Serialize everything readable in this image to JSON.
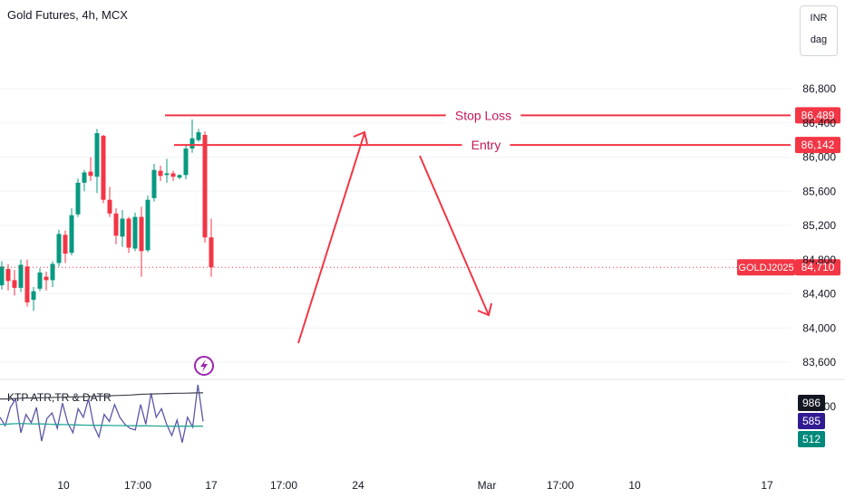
{
  "header": {
    "title": "Gold Futures, 4h, MCX",
    "currency": "INR",
    "unit": "dag"
  },
  "colors": {
    "up": "#089981",
    "down": "#f23645",
    "drawing": "#f23645",
    "drawing_text": "#c2185b",
    "atr_line": "#5b57a6",
    "tr_line": "#434651",
    "datr_line": "#26a69a",
    "label_price": "#f23645",
    "label_atr": "#131722",
    "label_tr": "#311b92",
    "label_datr": "#00897b"
  },
  "chart_data": {
    "type": "candlestick",
    "symbol_label": "GOLDJ2025",
    "last_price": "84,710",
    "price_axis": {
      "range": [
        83400,
        87000
      ],
      "ticks": [
        {
          "value": 86800,
          "label": "86,800"
        },
        {
          "value": 86400,
          "label": "86,400"
        },
        {
          "value": 86000,
          "label": "86,000"
        },
        {
          "value": 85600,
          "label": "85,600"
        },
        {
          "value": 85200,
          "label": "85,200"
        },
        {
          "value": 84800,
          "label": "84,800"
        },
        {
          "value": 84400,
          "label": "84,400"
        },
        {
          "value": 84000,
          "label": "84,000"
        },
        {
          "value": 83600,
          "label": "83,600"
        }
      ]
    },
    "time_axis": [
      "10",
      "17:00",
      "17",
      "17:00",
      "24",
      "Mar",
      "17:00",
      "10",
      "17"
    ],
    "candles": [
      {
        "o": 84500,
        "h": 84780,
        "l": 84450,
        "c": 84720
      },
      {
        "o": 84690,
        "h": 84750,
        "l": 84440,
        "c": 84550
      },
      {
        "o": 84560,
        "h": 84680,
        "l": 84380,
        "c": 84470
      },
      {
        "o": 84470,
        "h": 84800,
        "l": 84420,
        "c": 84740
      },
      {
        "o": 84720,
        "h": 84800,
        "l": 84250,
        "c": 84300
      },
      {
        "o": 84330,
        "h": 84480,
        "l": 84200,
        "c": 84430
      },
      {
        "o": 84460,
        "h": 84700,
        "l": 84430,
        "c": 84650
      },
      {
        "o": 84600,
        "h": 84660,
        "l": 84440,
        "c": 84560
      },
      {
        "o": 84560,
        "h": 84780,
        "l": 84480,
        "c": 84750
      },
      {
        "o": 84760,
        "h": 85150,
        "l": 84720,
        "c": 85100
      },
      {
        "o": 85090,
        "h": 85140,
        "l": 84760,
        "c": 84870
      },
      {
        "o": 84880,
        "h": 85400,
        "l": 84850,
        "c": 85320
      },
      {
        "o": 85330,
        "h": 85750,
        "l": 85300,
        "c": 85700
      },
      {
        "o": 85700,
        "h": 85850,
        "l": 85600,
        "c": 85820
      },
      {
        "o": 85830,
        "h": 86000,
        "l": 85720,
        "c": 85780
      },
      {
        "o": 85770,
        "h": 86330,
        "l": 85580,
        "c": 86280
      },
      {
        "o": 86250,
        "h": 86260,
        "l": 85460,
        "c": 85500
      },
      {
        "o": 85500,
        "h": 85650,
        "l": 85300,
        "c": 85340
      },
      {
        "o": 85340,
        "h": 85400,
        "l": 84980,
        "c": 85080
      },
      {
        "o": 85070,
        "h": 85380,
        "l": 84950,
        "c": 85280
      },
      {
        "o": 85280,
        "h": 85300,
        "l": 84880,
        "c": 84940
      },
      {
        "o": 84930,
        "h": 85350,
        "l": 84900,
        "c": 85300
      },
      {
        "o": 85300,
        "h": 85420,
        "l": 84600,
        "c": 84900
      },
      {
        "o": 84910,
        "h": 85550,
        "l": 84890,
        "c": 85500
      },
      {
        "o": 85520,
        "h": 85920,
        "l": 85480,
        "c": 85850
      },
      {
        "o": 85840,
        "h": 85900,
        "l": 85720,
        "c": 85780
      },
      {
        "o": 85790,
        "h": 85980,
        "l": 85700,
        "c": 85810
      },
      {
        "o": 85810,
        "h": 85840,
        "l": 85720,
        "c": 85770
      },
      {
        "o": 85760,
        "h": 85800,
        "l": 85740,
        "c": 85790
      },
      {
        "o": 85790,
        "h": 86150,
        "l": 85740,
        "c": 86100
      },
      {
        "o": 86100,
        "h": 86440,
        "l": 86050,
        "c": 86220
      },
      {
        "o": 86200,
        "h": 86330,
        "l": 86180,
        "c": 86290
      },
      {
        "o": 86260,
        "h": 86300,
        "l": 85000,
        "c": 85060
      },
      {
        "o": 85060,
        "h": 85280,
        "l": 84600,
        "c": 84710
      }
    ],
    "drawings": [
      {
        "kind": "hline",
        "label": "Stop Loss",
        "price": 86489,
        "price_label": "86,489"
      },
      {
        "kind": "hline",
        "label": "Entry",
        "price": 86142,
        "price_label": "86,142"
      }
    ],
    "indicator": {
      "name": "KTP ATR,TR & DATR",
      "axis_tick": "1,000",
      "atr_value": "986",
      "tr_value": "585",
      "datr_value": "512",
      "tr": [
        640,
        520,
        780,
        900,
        420,
        680,
        560,
        780,
        300,
        620,
        700,
        480,
        840,
        560,
        420,
        760,
        640,
        900,
        520,
        360,
        680,
        580,
        820,
        640,
        540,
        480,
        460,
        820,
        540,
        980,
        640,
        760,
        540,
        380,
        600,
        280,
        640,
        500,
        1100,
        580
      ],
      "atr": [
        900,
        900,
        900,
        905,
        910,
        912,
        914,
        915,
        916,
        918,
        920,
        922,
        924,
        926,
        928,
        930,
        932,
        934,
        936,
        938,
        940,
        945,
        948,
        950,
        952,
        955,
        960,
        965,
        968,
        970,
        972,
        974,
        976,
        978,
        980,
        980,
        982,
        984,
        986,
        986
      ],
      "datr": [
        540,
        540,
        545,
        548,
        550,
        548,
        546,
        545,
        544,
        542,
        540,
        538,
        536,
        534,
        532,
        530,
        528,
        526,
        525,
        525,
        524,
        523,
        522,
        521,
        520,
        520,
        519,
        518,
        517,
        516,
        515,
        514,
        514,
        513,
        513,
        512,
        512,
        512,
        512,
        512
      ]
    }
  }
}
